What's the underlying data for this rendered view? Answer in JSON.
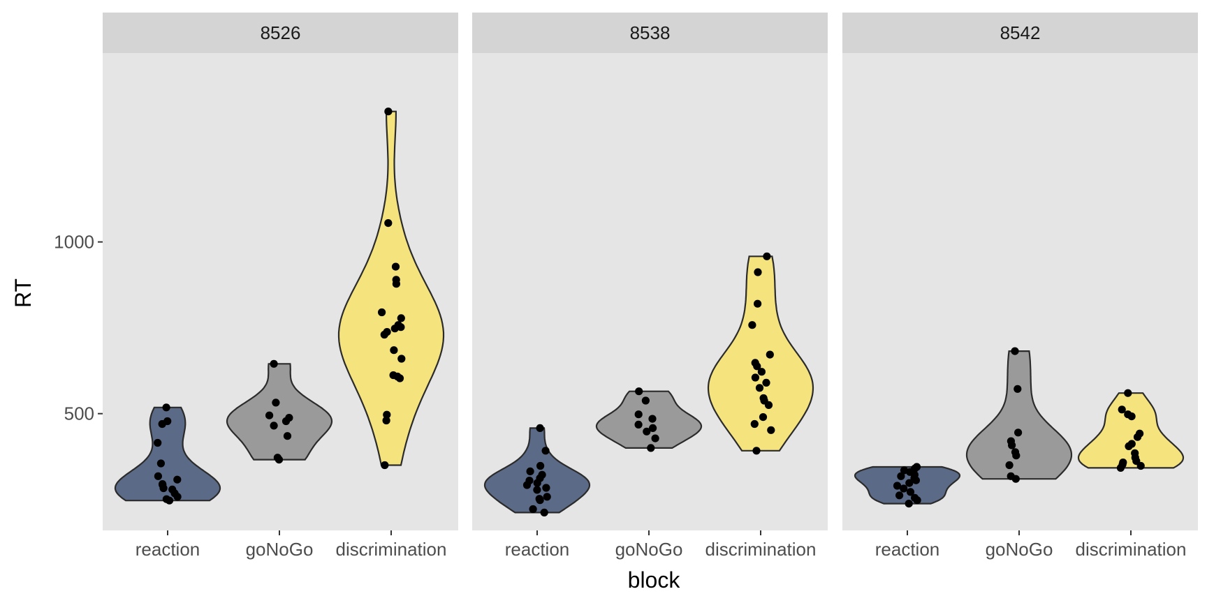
{
  "chart_data": {
    "type": "violin",
    "xlabel": "block",
    "ylabel": "RT",
    "y_ticks": [
      500,
      1000
    ],
    "ylim": [
      160,
      1550
    ],
    "categories": [
      "reaction",
      "goNoGo",
      "discrimination"
    ],
    "fill_colors": {
      "reaction": "#5b6a86",
      "goNoGo": "#9a9a9a",
      "discrimination": "#f5e37e"
    },
    "panel_background": "#e5e5e5",
    "strip_background": "#d4d4d4",
    "grid": false,
    "points_jittered": true,
    "panels": [
      {
        "label": "8526",
        "groups": [
          {
            "category": "reaction",
            "points": [
              518,
              478,
              470,
              415,
              355,
              318,
              308,
              295,
              293,
              283,
              279,
              268,
              258,
              251,
              247
            ]
          },
          {
            "category": "goNoGo",
            "points": [
              645,
              532,
              495,
              488,
              478,
              465,
              435,
              372,
              366
            ]
          },
          {
            "category": "discrimination",
            "points": [
              1380,
              1055,
              928,
              890,
              878,
              795,
              778,
              758,
              752,
              748,
              738,
              730,
              685,
              660,
              612,
              608,
              603,
              497,
              480,
              350
            ]
          }
        ]
      },
      {
        "label": "8538",
        "groups": [
          {
            "category": "reaction",
            "points": [
              458,
              392,
              348,
              332,
              322,
              312,
              305,
              298,
              292,
              284,
              278,
              258,
              252,
              248,
              222,
              212
            ]
          },
          {
            "category": "goNoGo",
            "points": [
              565,
              538,
              498,
              485,
              468,
              458,
              448,
              428,
              400
            ]
          },
          {
            "category": "discrimination",
            "points": [
              958,
              912,
              820,
              758,
              672,
              648,
              638,
              622,
              605,
              590,
              575,
              545,
              538,
              525,
              490,
              470,
              452,
              392
            ]
          }
        ]
      },
      {
        "label": "8542",
        "groups": [
          {
            "category": "reaction",
            "points": [
              345,
              340,
              335,
              330,
              322,
              318,
              312,
              306,
              298,
              290,
              282,
              272,
              262,
              255,
              248,
              238
            ]
          },
          {
            "category": "goNoGo",
            "points": [
              682,
              572,
              445,
              420,
              408,
              388,
              378,
              350,
              318,
              310
            ]
          },
          {
            "category": "discrimination",
            "points": [
              560,
              512,
              498,
              492,
              442,
              432,
              412,
              405,
              385,
              372,
              362,
              358,
              352,
              348,
              342
            ]
          }
        ]
      }
    ]
  }
}
